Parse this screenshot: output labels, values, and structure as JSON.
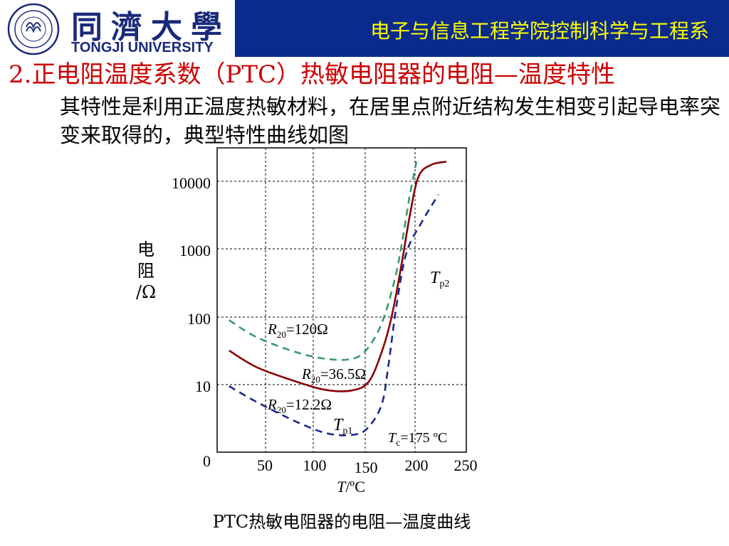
{
  "header": {
    "logo_cn": "同濟大學",
    "logo_en": "TONGJI UNIVERSITY",
    "department": "电子与信息工程学院控制科学与工程系",
    "band_color": "#0a2a8c",
    "title_color": "#ffff00"
  },
  "slide": {
    "heading": "2.正电阻温度系数（PTC）热敏电阻器的电阻—温度特性",
    "body": "其特性是利用正温度热敏材料，在居里点附近结构发生相变引起导电率突变来取得的，典型特性曲线如图"
  },
  "chart_data": {
    "type": "line",
    "caption": "PTC热敏电阻器的电阻—温度曲线",
    "xlabel": {
      "main": "T",
      "unit": "/ºC"
    },
    "ylabel": {
      "lines": [
        "电",
        "阻",
        "/Ω"
      ]
    },
    "x_ticks": [
      50,
      100,
      150,
      200,
      250
    ],
    "y_ticks": [
      "0",
      "10",
      "100",
      "1000",
      "10000"
    ],
    "y_scale": "log",
    "grid": true,
    "series": [
      {
        "name": "R20=120Ω",
        "label_main": "R",
        "label_sub": "20",
        "label_rest": "=120Ω",
        "color": "#3a9a6a",
        "dash": true,
        "points": [
          [
            12,
            90
          ],
          [
            40,
            50
          ],
          [
            80,
            30
          ],
          [
            110,
            24
          ],
          [
            135,
            24
          ],
          [
            150,
            33
          ],
          [
            165,
            80
          ],
          [
            178,
            350
          ],
          [
            186,
            1400
          ],
          [
            193,
            6000
          ],
          [
            200,
            20000
          ]
        ]
      },
      {
        "name": "R20=36.5Ω",
        "label_main": "R",
        "label_sub": "20",
        "label_rest": "=36.5Ω",
        "color": "#8b0000",
        "dash": false,
        "points": [
          [
            12,
            32
          ],
          [
            40,
            18
          ],
          [
            80,
            11
          ],
          [
            110,
            8.3
          ],
          [
            135,
            8.2
          ],
          [
            152,
            11
          ],
          [
            165,
            30
          ],
          [
            175,
            100
          ],
          [
            185,
            600
          ],
          [
            193,
            3000
          ],
          [
            202,
            12000
          ],
          [
            215,
            18000
          ],
          [
            230,
            20000
          ]
        ]
      },
      {
        "name": "R20=12.2Ω",
        "label_main": "R",
        "label_sub": "20",
        "label_rest": "=12.2Ω",
        "color": "#1a2a8c",
        "dash": true,
        "points": [
          [
            12,
            9.5
          ],
          [
            40,
            5.5
          ],
          [
            80,
            2.8
          ],
          [
            110,
            1.9
          ],
          [
            135,
            1.8
          ],
          [
            150,
            2.2
          ],
          [
            165,
            5
          ],
          [
            172,
            20
          ],
          [
            180,
            150
          ],
          [
            190,
            900
          ],
          [
            205,
            2500
          ],
          [
            222,
            6500
          ]
        ]
      }
    ],
    "annotations": [
      {
        "text_main": "T",
        "text_sub": "p1",
        "text_rest": "",
        "x": 119,
        "y": 2.0
      },
      {
        "text_main": "T",
        "text_sub": "p2",
        "text_rest": "",
        "x": 203,
        "y": 450
      },
      {
        "text_main": "T",
        "text_sub": "c",
        "text_rest": "=175 ºC",
        "x": 168,
        "y": 1.4
      }
    ]
  }
}
